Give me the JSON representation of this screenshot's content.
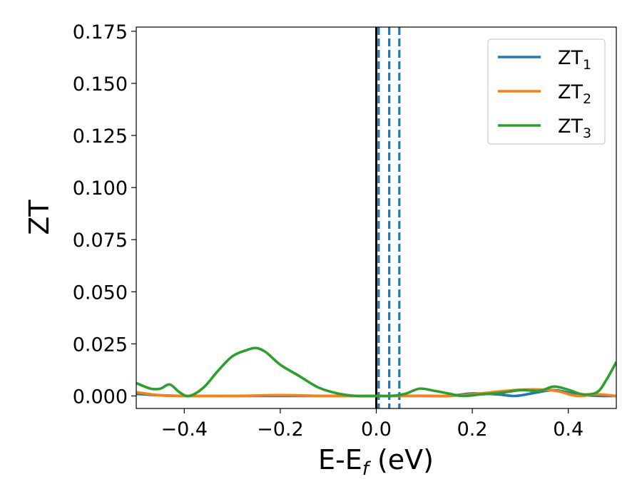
{
  "chart_data": {
    "type": "line",
    "xlabel": "E-E",
    "xlabel_subscript": "f",
    "xlabel_suffix": " (eV)",
    "ylabel": "ZT",
    "xlim": [
      -0.5,
      0.5
    ],
    "ylim": [
      -0.006,
      0.177
    ],
    "xticks": [
      -0.4,
      -0.2,
      0.0,
      0.2,
      0.4
    ],
    "xtick_labels": [
      "−0.4",
      "−0.2",
      "0.0",
      "0.2",
      "0.4"
    ],
    "yticks": [
      0.0,
      0.025,
      0.05,
      0.075,
      0.1,
      0.125,
      0.15,
      0.175
    ],
    "ytick_labels": [
      "0.000",
      "0.025",
      "0.050",
      "0.075",
      "0.100",
      "0.125",
      "0.150",
      "0.175"
    ],
    "grid": false,
    "legend_position": "top-right",
    "vertical_lines": [
      {
        "x": 0.0,
        "color": "#000000",
        "style": "solid"
      },
      {
        "x": 0.005,
        "color": "#1f77b4",
        "style": "dashed"
      },
      {
        "x": 0.027,
        "color": "#1f77b4",
        "style": "dashed"
      },
      {
        "x": 0.048,
        "color": "#1f77b4",
        "style": "dashed"
      }
    ],
    "series": [
      {
        "name": "ZT",
        "subscript": "1",
        "color": "#1f77b4",
        "x": [
          -0.5,
          -0.45,
          -0.4,
          -0.3,
          -0.2,
          -0.1,
          0.0,
          0.1,
          0.15,
          0.2,
          0.25,
          0.29,
          0.33,
          0.37,
          0.41,
          0.44,
          0.47,
          0.5
        ],
        "y": [
          0.001,
          0.0003,
          0.0,
          0.0,
          0.0,
          0.0,
          0.0,
          0.0,
          0.0,
          0.0012,
          0.0008,
          0.0,
          0.0015,
          0.0028,
          0.0012,
          0.0003,
          0.0,
          0.0
        ]
      },
      {
        "name": "ZT",
        "subscript": "2",
        "color": "#ff7f0e",
        "x": [
          -0.5,
          -0.45,
          -0.4,
          -0.3,
          -0.2,
          -0.1,
          0.0,
          0.1,
          0.15,
          0.2,
          0.25,
          0.3,
          0.35,
          0.38,
          0.41,
          0.43,
          0.46,
          0.5
        ],
        "y": [
          0.0018,
          0.0003,
          0.0,
          0.0,
          0.0004,
          0.0,
          0.0,
          0.0001,
          0.0,
          0.0008,
          0.002,
          0.003,
          0.003,
          0.0022,
          0.0003,
          0.0,
          0.0008,
          0.0
        ]
      },
      {
        "name": "ZT",
        "subscript": "3",
        "color": "#2ca02c",
        "x": [
          -0.5,
          -0.47,
          -0.45,
          -0.43,
          -0.41,
          -0.39,
          -0.36,
          -0.33,
          -0.3,
          -0.27,
          -0.25,
          -0.23,
          -0.2,
          -0.16,
          -0.12,
          -0.08,
          -0.04,
          0.0,
          0.03,
          0.06,
          0.09,
          0.12,
          0.15,
          0.18,
          0.22,
          0.26,
          0.3,
          0.34,
          0.37,
          0.4,
          0.43,
          0.46,
          0.48,
          0.5
        ],
        "y": [
          0.0062,
          0.0035,
          0.0035,
          0.0055,
          0.0018,
          0.0,
          0.004,
          0.012,
          0.019,
          0.022,
          0.023,
          0.021,
          0.015,
          0.0095,
          0.004,
          0.0012,
          0.0,
          0.0,
          0.0,
          0.001,
          0.0035,
          0.0025,
          0.0012,
          0.0,
          0.0008,
          0.0015,
          0.0028,
          0.0025,
          0.0045,
          0.003,
          0.0008,
          0.0018,
          0.008,
          0.0163
        ]
      }
    ]
  }
}
